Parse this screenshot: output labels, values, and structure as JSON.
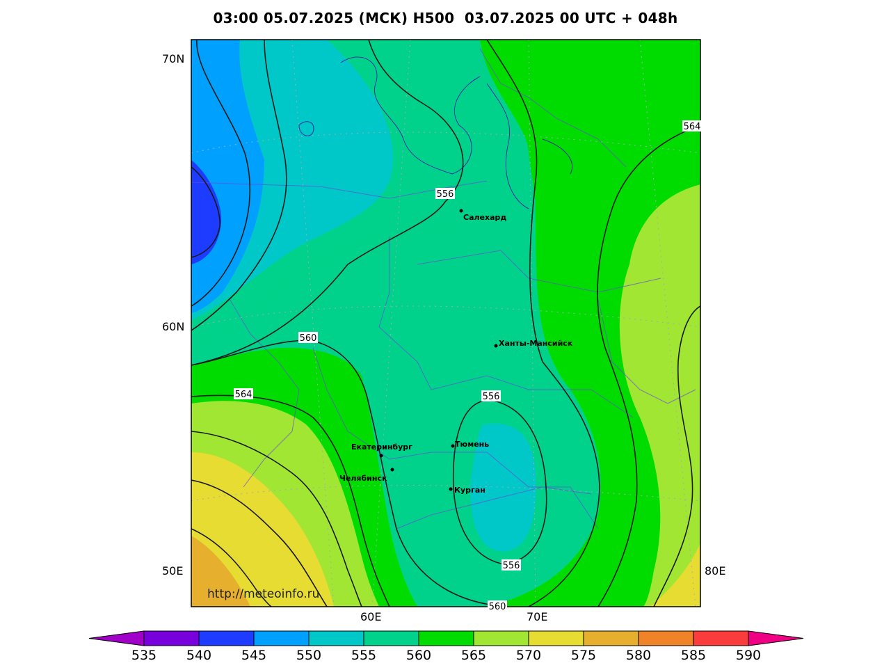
{
  "title": "03:00 05.07.2025 (МСК) H500  03.07.2025 00 UTC + 048h",
  "map": {
    "lat_labels": [
      "70N",
      "60N"
    ],
    "lon_labels": [
      "50E",
      "60E",
      "70E",
      "80E"
    ],
    "contour_labels": [
      "556",
      "560",
      "564",
      "564",
      "556",
      "556",
      "560"
    ],
    "cities": [
      "Салехард",
      "Ханты-Мансийск",
      "Екатеринбург",
      "Тюмень",
      "Челябинск",
      "Курган"
    ],
    "url": "http://meteoinfo.ru"
  },
  "colorbar": {
    "labels": [
      "535",
      "540",
      "545",
      "550",
      "555",
      "560",
      "565",
      "570",
      "575",
      "580",
      "585",
      "590"
    ],
    "colors": [
      "#a000c8",
      "#7800dc",
      "#1e3cff",
      "#00a0ff",
      "#00c8c8",
      "#00d28c",
      "#00dc00",
      "#a0e632",
      "#e6dc32",
      "#e6af2d",
      "#f08228",
      "#fa3c3c",
      "#f00082"
    ]
  }
}
